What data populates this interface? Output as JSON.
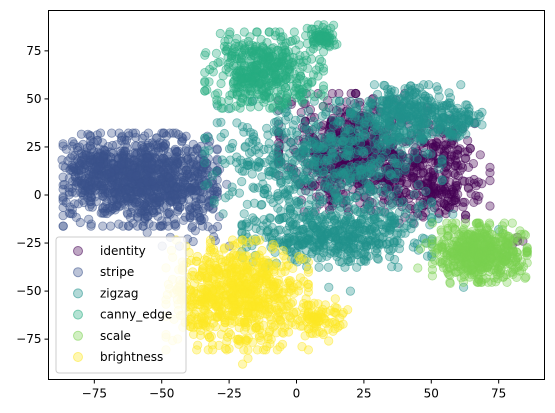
{
  "chart_data": {
    "type": "scatter",
    "title": "",
    "xlabel": "",
    "ylabel": "",
    "xlim": [
      -92,
      92
    ],
    "ylim": [
      -96,
      96
    ],
    "xticks": [
      -75,
      -50,
      -25,
      0,
      25,
      50,
      75
    ],
    "yticks": [
      -75,
      -50,
      -25,
      0,
      25,
      50,
      75
    ],
    "grid": false,
    "legend_position": "lower-left",
    "marker_alpha": 0.35,
    "series": [
      {
        "name": "identity",
        "color": "#440154",
        "clusters": [
          {
            "cx": 22,
            "cy": 22,
            "sx": 13,
            "sy": 14,
            "n": 650
          },
          {
            "cx": 52,
            "cy": 5,
            "sx": 9,
            "sy": 9,
            "n": 200
          },
          {
            "cx": 55,
            "cy": 22,
            "sx": 6,
            "sy": 8,
            "n": 80
          }
        ],
        "points": [
          [
            82,
            -24
          ],
          [
            80,
            -26
          ],
          [
            82,
            -22
          ],
          [
            84,
            -24
          ],
          [
            44,
            22
          ],
          [
            60,
            10
          ]
        ]
      },
      {
        "name": "stripe",
        "color": "#3b528b",
        "clusters": [
          {
            "cx": -58,
            "cy": 8,
            "sx": 13,
            "sy": 11,
            "n": 900
          },
          {
            "cx": -76,
            "cy": 12,
            "sx": 5,
            "sy": 9,
            "n": 150
          },
          {
            "cx": -40,
            "cy": 2,
            "sx": 7,
            "sy": 13,
            "n": 150
          }
        ],
        "points": []
      },
      {
        "name": "zigzag",
        "color": "#21918c",
        "clusters": [
          {
            "cx": 42,
            "cy": 42,
            "sx": 10,
            "sy": 7,
            "n": 320
          },
          {
            "cx": 15,
            "cy": -20,
            "sx": 16,
            "sy": 8,
            "n": 500
          },
          {
            "cx": 10,
            "cy": 18,
            "sx": 20,
            "sy": 14,
            "n": 550
          },
          {
            "cx": 60,
            "cy": 38,
            "sx": 4,
            "sy": 4,
            "n": 60
          }
        ],
        "points": [
          [
            -10,
            -22
          ],
          [
            -15,
            -24
          ],
          [
            -10,
            12
          ],
          [
            30,
            -33
          ],
          [
            12,
            -48
          ],
          [
            20,
            -50
          ],
          [
            58,
            -10
          ],
          [
            75,
            -18
          ],
          [
            78,
            -32
          ],
          [
            62,
            -48
          ],
          [
            48,
            2
          ],
          [
            -7,
            -25
          ],
          [
            -4,
            25
          ],
          [
            -3,
            3
          ]
        ]
      },
      {
        "name": "canny_edge",
        "color": "#27ad81",
        "clusters": [
          {
            "cx": -12,
            "cy": 65,
            "sx": 10,
            "sy": 9,
            "n": 450
          },
          {
            "cx": 10,
            "cy": 82,
            "sx": 3,
            "sy": 3,
            "n": 70
          }
        ],
        "points": [
          [
            -22,
            52
          ],
          [
            -20,
            50
          ],
          [
            -14,
            46
          ],
          [
            2,
            55
          ],
          [
            -25,
            64
          ],
          [
            -28,
            58
          ]
        ]
      },
      {
        "name": "scale",
        "color": "#7ad151",
        "clusters": [
          {
            "cx": 68,
            "cy": -30,
            "sx": 8,
            "sy": 7,
            "n": 520
          }
        ],
        "points": [
          [
            46,
            -28
          ],
          [
            48,
            -25
          ],
          [
            57,
            -46
          ],
          [
            85,
            -30
          ],
          [
            45,
            -38
          ]
        ]
      },
      {
        "name": "brightness",
        "color": "#fde725",
        "clusters": [
          {
            "cx": -22,
            "cy": -52,
            "sx": 12,
            "sy": 13,
            "n": 750
          },
          {
            "cx": 8,
            "cy": -65,
            "sx": 5,
            "sy": 5,
            "n": 90
          }
        ],
        "points": [
          [
            -38,
            -42
          ],
          [
            -32,
            -35
          ],
          [
            -20,
            -88
          ],
          [
            -18,
            -85
          ],
          [
            -25,
            -80
          ]
        ]
      }
    ]
  }
}
